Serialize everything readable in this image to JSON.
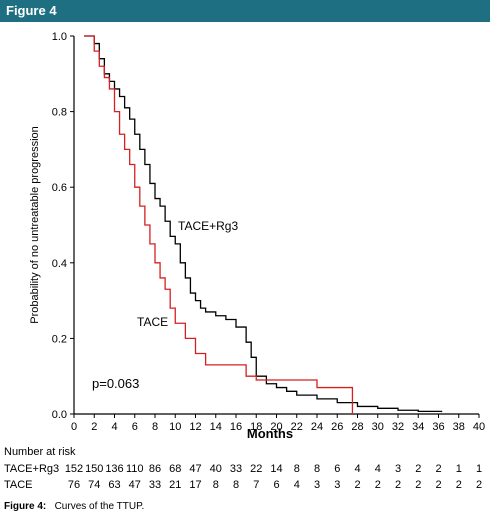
{
  "header": {
    "title": "Figure 4"
  },
  "chart_data": {
    "type": "line",
    "xlabel": "Months",
    "ylabel": "Probability of no untreatable progression",
    "xlim": [
      0,
      40
    ],
    "ylim": [
      0,
      1.0
    ],
    "xticks": [
      0,
      2,
      4,
      6,
      8,
      10,
      12,
      14,
      16,
      18,
      20,
      22,
      24,
      26,
      28,
      30,
      32,
      34,
      36,
      38,
      40
    ],
    "yticks": [
      "0.0",
      "0.2",
      "0.4",
      "0.6",
      "0.8",
      "1.0"
    ],
    "annotation": "p=0.063",
    "series": [
      {
        "name": "TACE+Rg3",
        "color": "#000000",
        "x": [
          1,
          2,
          2.5,
          3,
          3.5,
          4,
          4.5,
          5,
          5.5,
          6,
          6.5,
          7,
          7.5,
          8,
          8.5,
          9,
          9.5,
          10,
          10.5,
          11,
          11.5,
          12,
          12.5,
          13,
          14,
          15,
          16,
          17,
          17.5,
          18,
          19,
          20,
          21,
          22,
          24,
          26,
          28,
          30,
          32,
          34,
          36.3
        ],
        "y": [
          1.0,
          0.98,
          0.94,
          0.9,
          0.88,
          0.86,
          0.84,
          0.81,
          0.78,
          0.74,
          0.7,
          0.66,
          0.61,
          0.57,
          0.55,
          0.51,
          0.47,
          0.45,
          0.4,
          0.36,
          0.32,
          0.3,
          0.28,
          0.27,
          0.26,
          0.25,
          0.23,
          0.19,
          0.15,
          0.1,
          0.08,
          0.07,
          0.06,
          0.05,
          0.04,
          0.03,
          0.02,
          0.015,
          0.01,
          0.007,
          0.005
        ]
      },
      {
        "name": "TACE",
        "color": "#d42020",
        "x": [
          1,
          2,
          2.5,
          3,
          3.5,
          4,
          4.5,
          5,
          5.5,
          6,
          6.5,
          7,
          7.5,
          8,
          8.5,
          9,
          9.5,
          10,
          11,
          12,
          13,
          17,
          18,
          24,
          27.5
        ],
        "y": [
          1.0,
          0.96,
          0.92,
          0.89,
          0.86,
          0.8,
          0.74,
          0.7,
          0.66,
          0.6,
          0.55,
          0.5,
          0.45,
          0.4,
          0.36,
          0.33,
          0.28,
          0.24,
          0.2,
          0.16,
          0.13,
          0.1,
          0.09,
          0.07,
          0.0
        ]
      }
    ]
  },
  "risk_table": {
    "title": "Number at risk",
    "times": [
      0,
      2,
      4,
      6,
      8,
      10,
      12,
      14,
      16,
      18,
      20,
      22,
      24,
      26,
      28,
      30,
      32,
      34,
      36,
      38,
      40
    ],
    "rows": [
      {
        "label": "TACE+Rg3",
        "values": [
          "152",
          "150",
          "136",
          "110",
          "86",
          "68",
          "47",
          "40",
          "33",
          "22",
          "14",
          "8",
          "8",
          "6",
          "4",
          "4",
          "3",
          "2",
          "2",
          "1",
          "1"
        ]
      },
      {
        "label": "TACE",
        "values": [
          "76",
          "74",
          "63",
          "47",
          "33",
          "21",
          "17",
          "8",
          "8",
          "7",
          "6",
          "4",
          "3",
          "3",
          "2",
          "2",
          "2",
          "2",
          "2",
          "2",
          "2"
        ]
      }
    ]
  },
  "caption": {
    "label": "Figure 4:",
    "text": "Curves of the TTUP."
  }
}
